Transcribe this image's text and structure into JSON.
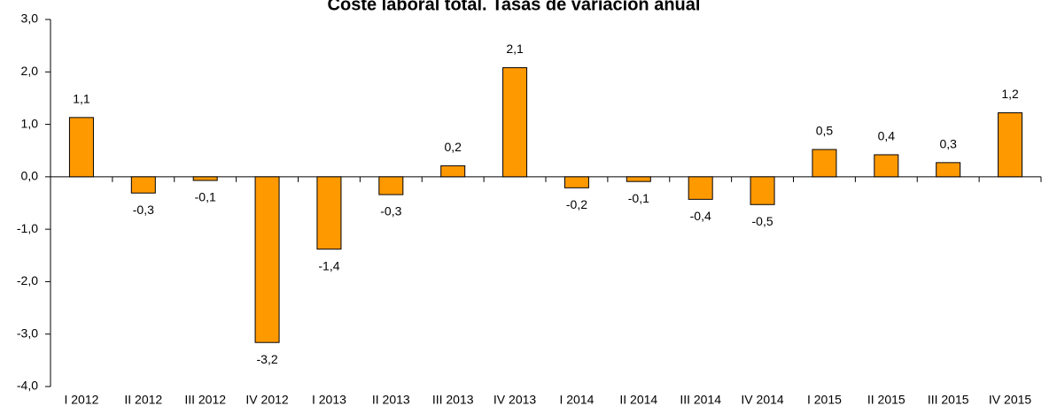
{
  "chart_data": {
    "type": "bar",
    "title": "Coste laboral total. Tasas de variación anual",
    "categories": [
      "I 2012",
      "II 2012",
      "III 2012",
      "IV 2012",
      "I 2013",
      "II 2013",
      "III 2013",
      "IV 2013",
      "I 2014",
      "II 2014",
      "III 2014",
      "IV 2014",
      "I 2015",
      "II 2015",
      "III 2015",
      "IV 2015"
    ],
    "values": [
      1.13,
      -0.31,
      -0.07,
      -3.16,
      -1.38,
      -0.34,
      0.21,
      2.08,
      -0.21,
      -0.09,
      -0.43,
      -0.53,
      0.52,
      0.42,
      0.27,
      1.22
    ],
    "value_labels": [
      "1,1",
      "-0,3",
      "-0,1",
      "-3,2",
      "-1,4",
      "-0,3",
      "0,2",
      "2,1",
      "-0,2",
      "-0,1",
      "-0,4",
      "-0,5",
      "0,5",
      "0,4",
      "0,3",
      "1,2"
    ],
    "color": "#ff9900",
    "ylim": [
      -4,
      3
    ],
    "yticks": [
      {
        "value": -4,
        "label": "-4,0"
      },
      {
        "value": -3,
        "label": "-3,0"
      },
      {
        "value": -2,
        "label": "-2,0"
      },
      {
        "value": -1,
        "label": "-1,0"
      },
      {
        "value": 0,
        "label": "0,0"
      },
      {
        "value": 1,
        "label": "1,0"
      },
      {
        "value": 2,
        "label": "2,0"
      },
      {
        "value": 3,
        "label": "3,0"
      }
    ],
    "grid": false
  }
}
